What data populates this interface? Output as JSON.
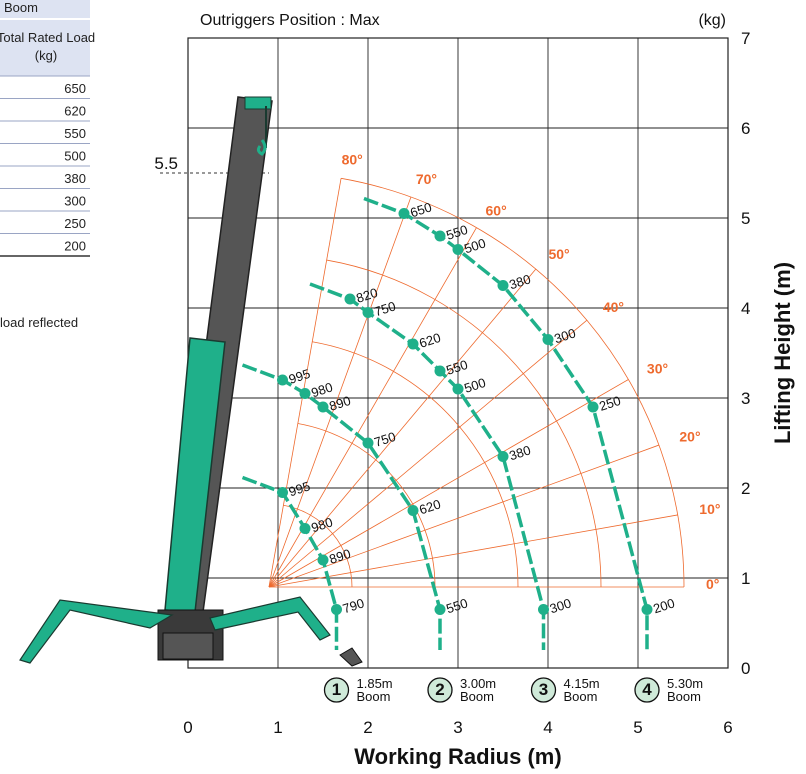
{
  "side_table": {
    "heading": "Boom",
    "column_header": [
      "Total Rated Load",
      "(kg)"
    ],
    "values": [
      "650",
      "620",
      "550",
      "500",
      "380",
      "300",
      "250",
      "200"
    ],
    "note": "load reflected"
  },
  "chart_data": {
    "type": "scatter",
    "title": "Outriggers Position : Max",
    "unit_label": "(kg)",
    "xlabel": "Working Radius (m)",
    "ylabel": "Lifting Height (m)",
    "xlim": [
      0,
      6
    ],
    "ylim": [
      0,
      7
    ],
    "x_ticks": [
      "0",
      "1",
      "2",
      "3",
      "4",
      "5",
      "6"
    ],
    "y_ticks": [
      "0",
      "1",
      "2",
      "3",
      "4",
      "5",
      "6",
      "7"
    ],
    "grid": true,
    "height_marker": "5.5",
    "angle_labels": [
      "80°",
      "70°",
      "60°",
      "50°",
      "40°",
      "30°",
      "20°",
      "10°",
      "0°"
    ],
    "colors": {
      "curve": "#1fb08a",
      "guide": "#ee6a2e",
      "crane": "#555555",
      "grid": "#222222"
    },
    "series": [
      {
        "number": "1",
        "name": "1.85m Boom",
        "label_line1": "1.85m",
        "label_line2": "Boom",
        "points": [
          {
            "x": 1.05,
            "y": 1.95,
            "load": "995"
          },
          {
            "x": 1.3,
            "y": 1.55,
            "load": "980"
          },
          {
            "x": 1.5,
            "y": 1.2,
            "load": "890"
          },
          {
            "x": 1.65,
            "y": 0.65,
            "load": "790"
          }
        ]
      },
      {
        "number": "2",
        "name": "3.00m Boom",
        "label_line1": "3.00m",
        "label_line2": "Boom",
        "points": [
          {
            "x": 1.05,
            "y": 3.2,
            "load": "995"
          },
          {
            "x": 1.3,
            "y": 3.05,
            "load": "980"
          },
          {
            "x": 1.5,
            "y": 2.9,
            "load": "890"
          },
          {
            "x": 2.0,
            "y": 2.5,
            "load": "750"
          },
          {
            "x": 2.5,
            "y": 1.75,
            "load": "620"
          },
          {
            "x": 2.8,
            "y": 0.65,
            "load": "550"
          }
        ]
      },
      {
        "number": "3",
        "name": "4.15m Boom",
        "label_line1": "4.15m",
        "label_line2": "Boom",
        "points": [
          {
            "x": 1.8,
            "y": 4.1,
            "load": "820"
          },
          {
            "x": 2.0,
            "y": 3.95,
            "load": "750"
          },
          {
            "x": 2.5,
            "y": 3.6,
            "load": "620"
          },
          {
            "x": 2.8,
            "y": 3.3,
            "load": "550"
          },
          {
            "x": 3.0,
            "y": 3.1,
            "load": "500"
          },
          {
            "x": 3.5,
            "y": 2.35,
            "load": "380"
          },
          {
            "x": 3.95,
            "y": 0.65,
            "load": "300"
          }
        ]
      },
      {
        "number": "4",
        "name": "5.30m Boom",
        "label_line1": "5.30m",
        "label_line2": "Boom",
        "points": [
          {
            "x": 2.4,
            "y": 5.05,
            "load": "650"
          },
          {
            "x": 2.8,
            "y": 4.8,
            "load": "550"
          },
          {
            "x": 3.0,
            "y": 4.65,
            "load": "500"
          },
          {
            "x": 3.5,
            "y": 4.25,
            "load": "380"
          },
          {
            "x": 4.0,
            "y": 3.65,
            "load": "300"
          },
          {
            "x": 4.5,
            "y": 2.9,
            "load": "250"
          },
          {
            "x": 5.1,
            "y": 0.65,
            "load": "200"
          }
        ]
      }
    ]
  }
}
